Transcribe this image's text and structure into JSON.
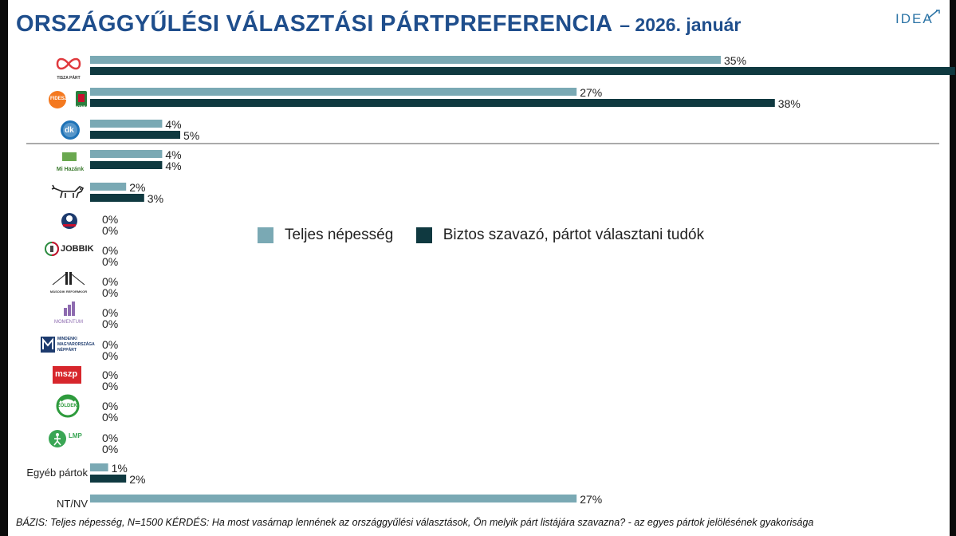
{
  "title": {
    "main": "ORSZÁGGYŰLÉSI VÁLASZTÁSI PÁRTPREFERENCIA",
    "sub": "– 2026. január"
  },
  "brand": "IDEA",
  "footnote": "BÁZIS: Teljes népesség, N=1500  KÉRDÉS:  Ha most vasárnap lennének az országgyűlési választások, Ön melyik párt listájára szavazna? - az egyes pártok jelölésének gyakorisága",
  "colors": {
    "series_total": "#7aa9b4",
    "series_likely": "#0f3940",
    "title": "#1f4e8c"
  },
  "logos": {
    "tisza": "TISZA PÁRT",
    "fidesz": "FIDESZ",
    "kdnp": "KDNP",
    "dk": "dk",
    "mi_hazank": "Mi Hazánk",
    "jobbik": "JOBBIK",
    "szazadveg": "MÁSODIK REFORMKOR",
    "momentum": "MOMENTUM",
    "mmn": "MINDENKI MAGYARORSZÁGA NÉPPÁRT",
    "mszp": "mszp",
    "zoldek": "ZÖLDEK",
    "lmp": "LMP"
  },
  "chart_data": {
    "type": "bar",
    "orientation": "horizontal",
    "title": "ORSZÁGGYŰLÉSI VÁLASZTÁSI PÁRTPREFERENCIA – 2026. január",
    "legend_position": "right-middle",
    "grid": false,
    "xlim": [
      0,
      60
    ],
    "categories": [
      "",
      "",
      "",
      "",
      "",
      "",
      "",
      "",
      "",
      "",
      "",
      "",
      "",
      "Egyéb pártok",
      "NT/NV"
    ],
    "category_logos": [
      "tisza-logo",
      "fidesz-kdnp-logo",
      "dk-logo",
      "mi-hazank-logo",
      "mkkp-logo",
      "mhp-logo",
      "jobbik-logo",
      "szazadveg-logo",
      "momentum-logo",
      "mmn-logo",
      "mszp-logo",
      "zoldek-logo",
      "lmp-logo",
      "",
      ""
    ],
    "series": [
      {
        "name": "Teljes népesség",
        "values": [
          35,
          27,
          4,
          4,
          2,
          0,
          0,
          0,
          0,
          0,
          0,
          0,
          0,
          1,
          27
        ]
      },
      {
        "name": "Biztos szavazó, pártot választani tudók",
        "values": [
          48,
          38,
          5,
          4,
          3,
          0,
          0,
          0,
          0,
          0,
          0,
          0,
          0,
          2,
          null
        ]
      }
    ],
    "value_suffix": "%"
  }
}
